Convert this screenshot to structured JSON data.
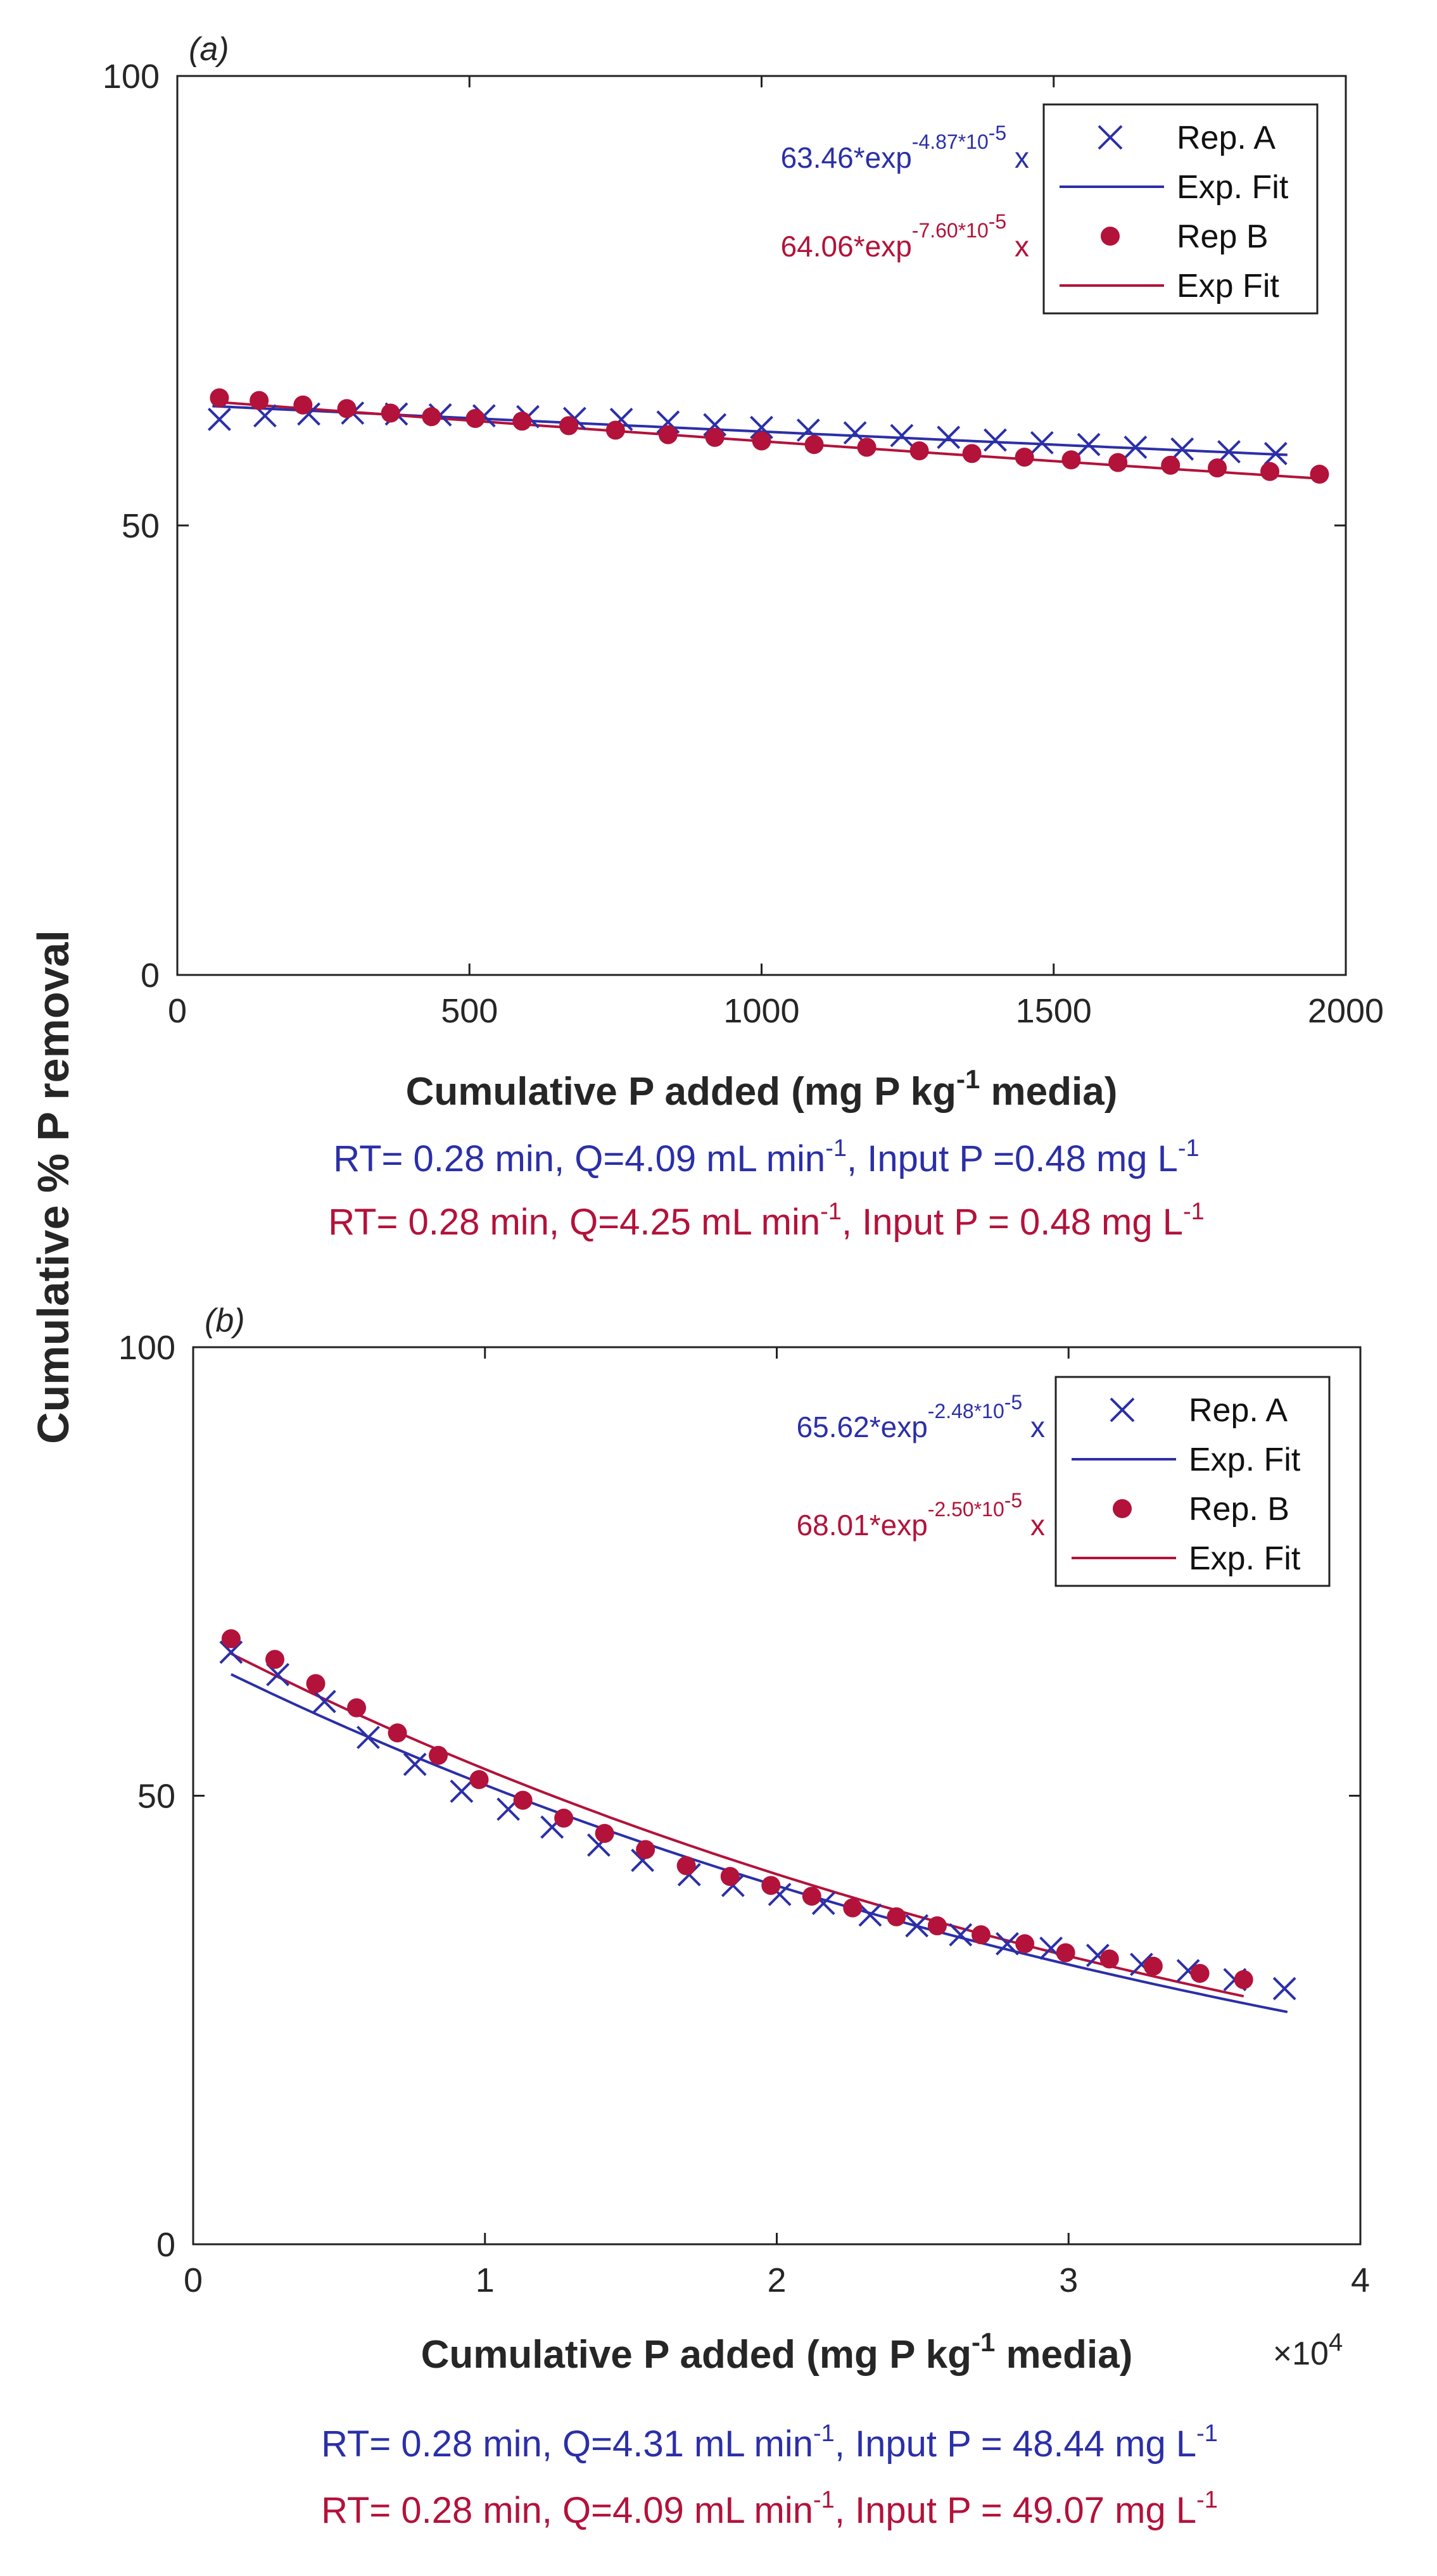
{
  "figure": {
    "ylabel": "Cumulative % P removal",
    "colors": {
      "repA": "#2b2fa8",
      "repB": "#b3123a",
      "axis": "#222222"
    }
  },
  "chart_data": [
    {
      "type": "scatter",
      "panel_label": "(a)",
      "xlabel": "Cumulative P added (mg P kg",
      "xlabel_sup": "-1",
      "xlabel_tail": " media)",
      "xlim": [
        0,
        2000
      ],
      "ylim": [
        0,
        100
      ],
      "xticks": [
        0,
        500,
        1000,
        1500,
        2000
      ],
      "xtick_labels": [
        "0",
        "500",
        "1000",
        "1500",
        "2000"
      ],
      "yticks": [
        0,
        50,
        100
      ],
      "ytick_labels": [
        "0",
        "50",
        "100"
      ],
      "x_multiplier": "",
      "x_multiplier_exp": "",
      "legend_position": "top-right",
      "legend": [
        {
          "label": "Rep. A",
          "marker": "x",
          "color": "#2b2fa8"
        },
        {
          "label": "Exp. Fit",
          "marker": "line",
          "color": "#2b2fa8"
        },
        {
          "label": "Rep B",
          "marker": "dot",
          "color": "#b3123a"
        },
        {
          "label": "Exp Fit",
          "marker": "line",
          "color": "#b3123a"
        }
      ],
      "equations": [
        {
          "base": "63.46*exp",
          "exponent": "-4.87*10",
          "exponent_sup": "-5",
          "tail": " x",
          "color": "#2b2fa8"
        },
        {
          "base": "64.06*exp",
          "exponent": "-7.60*10",
          "exponent_sup": "-5",
          "tail": " x",
          "color": "#b3123a"
        }
      ],
      "series": [
        {
          "name": "Rep. A",
          "marker": "x",
          "color": "#2b2fa8",
          "x": [
            72,
            150,
            225,
            300,
            375,
            450,
            525,
            600,
            680,
            760,
            840,
            920,
            1000,
            1080,
            1160,
            1240,
            1320,
            1400,
            1480,
            1560,
            1640,
            1720,
            1800,
            1880
          ],
          "y": [
            61.8,
            62.2,
            62.4,
            62.5,
            62.4,
            62.3,
            62.2,
            62.1,
            61.9,
            61.8,
            61.5,
            61.2,
            60.9,
            60.6,
            60.3,
            60.0,
            59.8,
            59.5,
            59.2,
            59.0,
            58.7,
            58.5,
            58.2,
            58.0
          ]
        },
        {
          "name": "Rep B",
          "marker": "dot",
          "color": "#b3123a",
          "x": [
            72,
            140,
            215,
            290,
            365,
            435,
            510,
            590,
            670,
            750,
            840,
            920,
            1000,
            1090,
            1180,
            1270,
            1360,
            1450,
            1530,
            1610,
            1700,
            1780,
            1870,
            1955
          ],
          "y": [
            64.2,
            63.9,
            63.4,
            63.0,
            62.5,
            62.1,
            61.9,
            61.6,
            61.1,
            60.6,
            60.1,
            59.8,
            59.4,
            59.0,
            58.7,
            58.3,
            58.0,
            57.6,
            57.3,
            57.0,
            56.7,
            56.4,
            56.0,
            55.7
          ]
        }
      ],
      "fits": [
        {
          "name": "Exp. Fit",
          "color": "#2b2fa8",
          "a": 63.46,
          "b": 4.87e-05,
          "xmin": 60,
          "xmax": 1900
        },
        {
          "name": "Exp Fit",
          "color": "#b3123a",
          "a": 64.06,
          "b": 7.6e-05,
          "xmin": 60,
          "xmax": 1960
        }
      ],
      "conditions": [
        {
          "pre": "RT= 0.28 min, Q=4.09 mL min",
          "sup1": "-1",
          "mid": ", Input P =0.48 mg L",
          "sup2": "-1",
          "color": "#2b2fa8"
        },
        {
          "pre": "RT= 0.28 min, Q=4.25 mL min",
          "sup1": "-1",
          "mid": ", Input P = 0.48 mg L",
          "sup2": "-1",
          "color": "#b3123a"
        }
      ]
    },
    {
      "type": "scatter",
      "panel_label": "(b)",
      "xlabel": "Cumulative P added (mg P kg",
      "xlabel_sup": "-1",
      "xlabel_tail": " media)",
      "xlim": [
        0,
        40000
      ],
      "ylim": [
        0,
        100
      ],
      "xticks": [
        0,
        10000,
        20000,
        30000,
        40000
      ],
      "xtick_labels": [
        "0",
        "1",
        "2",
        "3",
        "4"
      ],
      "yticks": [
        0,
        50,
        100
      ],
      "ytick_labels": [
        "0",
        "50",
        "100"
      ],
      "x_multiplier": "×10",
      "x_multiplier_exp": "4",
      "legend_position": "top-right",
      "legend": [
        {
          "label": "Rep. A",
          "marker": "x",
          "color": "#2b2fa8"
        },
        {
          "label": "Exp. Fit",
          "marker": "line",
          "color": "#2b2fa8"
        },
        {
          "label": "Rep. B",
          "marker": "dot",
          "color": "#b3123a"
        },
        {
          "label": "Exp. Fit",
          "marker": "line",
          "color": "#b3123a"
        }
      ],
      "equations": [
        {
          "base": "65.62*exp",
          "exponent": "-2.48*10",
          "exponent_sup": "-5",
          "tail": " x",
          "color": "#2b2fa8"
        },
        {
          "base": "68.01*exp",
          "exponent": "-2.50*10",
          "exponent_sup": "-5",
          "tail": " x",
          "color": "#b3123a"
        }
      ],
      "series": [
        {
          "name": "Rep. A",
          "marker": "x",
          "color": "#2b2fa8",
          "x": [
            1300,
            2900,
            4500,
            6000,
            7600,
            9200,
            10800,
            12300,
            13900,
            15400,
            17000,
            18500,
            20100,
            21600,
            23200,
            24800,
            26300,
            27900,
            29400,
            31000,
            32500,
            34100,
            35700,
            37400
          ],
          "y": [
            66.0,
            63.5,
            60.5,
            56.5,
            53.5,
            50.5,
            48.5,
            46.5,
            44.5,
            42.8,
            41.2,
            40.0,
            39.0,
            38.0,
            36.7,
            35.5,
            34.5,
            33.5,
            33.0,
            32.2,
            31.2,
            30.5,
            29.5,
            28.5
          ]
        },
        {
          "name": "Rep. B",
          "marker": "dot",
          "color": "#b3123a",
          "x": [
            1300,
            2800,
            4200,
            5600,
            7000,
            8400,
            9800,
            11300,
            12700,
            14100,
            15500,
            16900,
            18400,
            19800,
            21200,
            22600,
            24100,
            25500,
            27000,
            28500,
            29900,
            31400,
            32900,
            34500,
            36000
          ],
          "y": [
            67.5,
            65.2,
            62.5,
            59.8,
            57.0,
            54.5,
            51.8,
            49.5,
            47.5,
            45.8,
            44.0,
            42.2,
            41.0,
            40.0,
            38.8,
            37.5,
            36.5,
            35.5,
            34.5,
            33.5,
            32.5,
            31.8,
            31.0,
            30.2,
            29.5
          ]
        }
      ],
      "fits": [
        {
          "name": "Exp. Fit",
          "color": "#2b2fa8",
          "a": 65.62,
          "b": 2.48e-05,
          "xmin": 1300,
          "xmax": 37500
        },
        {
          "name": "Exp. Fit",
          "color": "#b3123a",
          "a": 68.01,
          "b": 2.5e-05,
          "xmin": 1300,
          "xmax": 36000
        }
      ],
      "conditions": [
        {
          "pre": "RT= 0.28 min, Q=4.31 mL min",
          "sup1": "-1",
          "mid": ", Input P = 48.44 mg L",
          "sup2": "-1",
          "color": "#2b2fa8"
        },
        {
          "pre": "RT= 0.28 min, Q=4.09 mL min",
          "sup1": "-1",
          "mid": ", Input P = 49.07 mg L",
          "sup2": "-1",
          "color": "#b3123a"
        }
      ]
    }
  ]
}
